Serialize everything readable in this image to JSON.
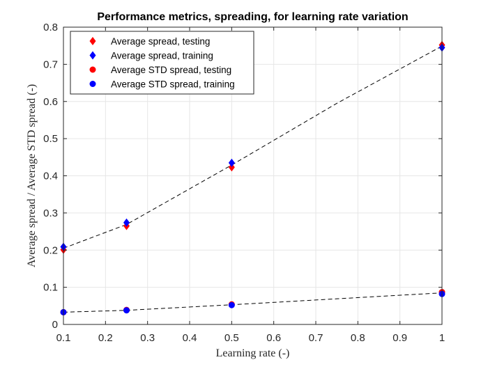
{
  "chart_data": {
    "type": "scatter",
    "title": "Performance metrics, spreading, for learning rate variation",
    "xlabel": "Learning rate (-)",
    "ylabel": "Average spread / Average STD spread (-)",
    "xlim": [
      0.1,
      1
    ],
    "ylim": [
      0,
      0.8
    ],
    "xticks": [
      0.1,
      0.2,
      0.3,
      0.4,
      0.5,
      0.6,
      0.7,
      0.8,
      0.9,
      1
    ],
    "xtick_labels": [
      "0.1",
      "0.2",
      "0.3",
      "0.4",
      "0.5",
      "0.6",
      "0.7",
      "0.8",
      "0.9",
      "1"
    ],
    "yticks": [
      0,
      0.1,
      0.2,
      0.3,
      0.4,
      0.5,
      0.6,
      0.7,
      0.8
    ],
    "ytick_labels": [
      "0",
      "0.1",
      "0.2",
      "0.3",
      "0.4",
      "0.5",
      "0.6",
      "0.7",
      "0.8"
    ],
    "grid": true,
    "legend_position": "top-left",
    "series": [
      {
        "name": "Average spread, testing",
        "marker": "diamond",
        "color": "#ff0000",
        "x": [
          0.1,
          0.25,
          0.5,
          1
        ],
        "y": [
          0.201,
          0.265,
          0.423,
          0.752
        ]
      },
      {
        "name": "Average spread, training",
        "marker": "diamond",
        "color": "#0000ff",
        "x": [
          0.1,
          0.25,
          0.5,
          1
        ],
        "y": [
          0.209,
          0.274,
          0.435,
          0.745
        ]
      },
      {
        "name": "Average STD spread, testing",
        "marker": "circle",
        "color": "#ff0000",
        "x": [
          0.1,
          0.25,
          0.5,
          1
        ],
        "y": [
          0.033,
          0.039,
          0.054,
          0.087
        ]
      },
      {
        "name": "Average STD spread, training",
        "marker": "circle",
        "color": "#0000ff",
        "x": [
          0.1,
          0.25,
          0.5,
          1
        ],
        "y": [
          0.033,
          0.038,
          0.052,
          0.082
        ]
      }
    ],
    "fit_lines": [
      {
        "style": "dashed",
        "color": "#000000",
        "x": [
          0.1,
          0.25,
          0.5,
          0.75,
          1
        ],
        "y": [
          0.205,
          0.269,
          0.429,
          0.595,
          0.749
        ]
      },
      {
        "style": "dashed",
        "color": "#000000",
        "x": [
          0.1,
          0.25,
          0.5,
          0.75,
          1
        ],
        "y": [
          0.033,
          0.038,
          0.053,
          0.069,
          0.085
        ]
      }
    ]
  }
}
